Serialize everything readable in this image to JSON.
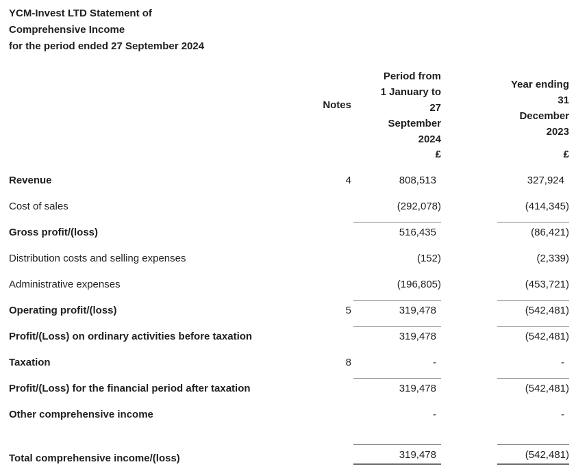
{
  "title": {
    "line1": "YCM-Invest LTD Statement of",
    "line2": "Comprehensive Income",
    "line3": "for the period ended 27 September 2024"
  },
  "table": {
    "headers": {
      "notes": "Notes",
      "period": "Period from\n1 January to\n27\nSeptember\n2024",
      "year": "Year ending\n31\nDecember\n2023",
      "currency_period": "£",
      "currency_year": "£"
    },
    "rows": [
      {
        "label": "Revenue",
        "note": "4",
        "period": "808,513",
        "year": "327,924",
        "bold": true
      },
      {
        "label": "Cost of sales",
        "note": "",
        "period": "(292,078)",
        "year": "(414,345)",
        "bold": false
      },
      {
        "label": "Gross profit/(loss)",
        "note": "",
        "period": "516,435",
        "year": "(86,421)",
        "bold": true,
        "line_above": true
      },
      {
        "label": "Distribution costs and selling expenses",
        "note": "",
        "period": "(152)",
        "year": "(2,339)",
        "bold": false
      },
      {
        "label": "Administrative expenses",
        "note": "",
        "period": "(196,805)",
        "year": "(453,721)",
        "bold": false
      },
      {
        "label": "Operating profit/(loss)",
        "note": "5",
        "period": "319,478",
        "year": "(542,481)",
        "bold": true,
        "line_above": true
      },
      {
        "label": "Profit/(Loss) on ordinary activities before taxation",
        "note": "",
        "period": "319,478",
        "year": "(542,481)",
        "bold": true,
        "line_above": true
      },
      {
        "label": "Taxation",
        "note": "8",
        "period": "-",
        "year": "-",
        "bold": true
      },
      {
        "label": "Profit/(Loss) for the financial period after taxation",
        "note": "",
        "period": "319,478",
        "year": "(542,481)",
        "bold": true,
        "line_above": true
      },
      {
        "label": "Other comprehensive income",
        "note": "",
        "period": "-",
        "year": "-",
        "bold": true
      },
      {
        "label": "Total comprehensive income/(loss)",
        "note": "",
        "period": "319,478",
        "year": "(542,481)",
        "bold": true,
        "line_above": true,
        "double_below": true,
        "spacer_before": true
      }
    ]
  },
  "colors": {
    "text": "#1f1f1f",
    "rule": "#808080",
    "rule_heavy": "#6e6e6e",
    "background": "#ffffff"
  }
}
